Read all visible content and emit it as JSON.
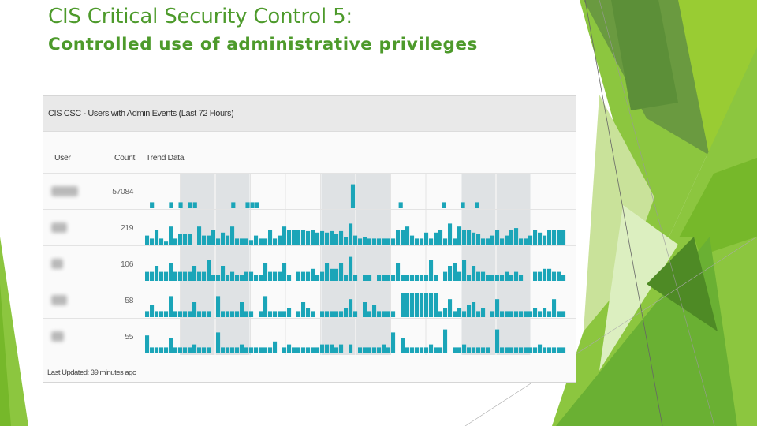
{
  "slide": {
    "title": "CIS Critical Security Control 5:",
    "subtitle": "Controlled use of administrative privileges"
  },
  "panel": {
    "title": "CIS CSC - Users with Admin Events (Last 72 Hours)",
    "columns": {
      "user": "User",
      "count": "Count",
      "trend": "Trend Data"
    },
    "footer": "Last Updated: 39 minutes ago",
    "shaded_buckets": [
      1,
      2,
      5,
      6,
      9,
      10
    ],
    "bar_color": "#1ba5b8",
    "shade_color": "#dfe2e4",
    "rows": [
      {
        "count": "57084",
        "trend": [
          0,
          0.2,
          0,
          0,
          0,
          0.2,
          0,
          0.2,
          0,
          0.2,
          0.2,
          0,
          0,
          0,
          0,
          0,
          0,
          0,
          0.2,
          0,
          0,
          0.2,
          0.2,
          0.2,
          0,
          0,
          0,
          0,
          0,
          0,
          0,
          0,
          0,
          0,
          0,
          0,
          0,
          0,
          0,
          0,
          0,
          0,
          0,
          0.8,
          0,
          0,
          0,
          0,
          0,
          0,
          0,
          0,
          0,
          0.2,
          0,
          0,
          0,
          0,
          0,
          0,
          0,
          0,
          0.2,
          0,
          0,
          0,
          0.2,
          0,
          0,
          0.2,
          0,
          0,
          0,
          0,
          0,
          0,
          0,
          0,
          0,
          0,
          0,
          0,
          0,
          0,
          0,
          0,
          0,
          0
        ]
      },
      {
        "count": "219",
        "trend": [
          0.3,
          0.2,
          0.5,
          0.2,
          0.1,
          0.6,
          0.2,
          0.35,
          0.35,
          0.35,
          0,
          0.6,
          0.3,
          0.3,
          0.5,
          0.2,
          0.4,
          0.3,
          0.6,
          0.2,
          0.2,
          0.2,
          0.15,
          0.3,
          0.2,
          0.2,
          0.5,
          0.2,
          0.3,
          0.6,
          0.5,
          0.5,
          0.5,
          0.5,
          0.45,
          0.5,
          0.4,
          0.45,
          0.4,
          0.45,
          0.35,
          0.45,
          0.25,
          0.7,
          0.3,
          0.2,
          0.25,
          0.2,
          0.2,
          0.2,
          0.2,
          0.2,
          0.2,
          0.5,
          0.5,
          0.6,
          0.3,
          0.2,
          0.2,
          0.4,
          0.2,
          0.4,
          0.5,
          0.2,
          0.7,
          0.2,
          0.6,
          0.5,
          0.5,
          0.4,
          0.35,
          0.2,
          0.2,
          0.3,
          0.5,
          0.2,
          0.3,
          0.5,
          0.55,
          0.2,
          0.2,
          0.3,
          0.5,
          0.4,
          0.3,
          0.5,
          0.5,
          0.5,
          0.5
        ]
      },
      {
        "count": "106",
        "trend": [
          0.3,
          0.3,
          0.5,
          0.3,
          0.3,
          0.6,
          0.3,
          0.3,
          0.3,
          0.3,
          0.5,
          0.3,
          0.3,
          0.7,
          0.2,
          0.2,
          0.5,
          0.2,
          0.3,
          0.2,
          0.2,
          0.3,
          0.3,
          0.2,
          0.2,
          0.6,
          0.3,
          0.3,
          0.3,
          0.6,
          0.2,
          0,
          0.3,
          0.3,
          0.3,
          0.4,
          0.2,
          0.3,
          0.6,
          0.4,
          0.4,
          0.6,
          0.2,
          0.8,
          0.2,
          0,
          0.2,
          0.2,
          0,
          0.2,
          0.2,
          0.2,
          0.2,
          0.6,
          0.2,
          0.2,
          0.2,
          0.2,
          0.2,
          0.2,
          0.7,
          0.2,
          0,
          0.3,
          0.5,
          0.6,
          0.3,
          0.7,
          0.2,
          0.5,
          0.3,
          0.3,
          0.2,
          0.2,
          0.2,
          0.2,
          0.3,
          0.2,
          0.3,
          0.2,
          0,
          0,
          0.3,
          0.3,
          0.4,
          0.4,
          0.3,
          0.3,
          0.2
        ]
      },
      {
        "count": "58",
        "trend": [
          0.2,
          0.4,
          0.2,
          0.2,
          0.2,
          0.7,
          0.2,
          0.2,
          0.2,
          0.2,
          0.5,
          0.2,
          0.2,
          0.2,
          0,
          0.7,
          0.2,
          0.2,
          0.2,
          0.2,
          0.5,
          0.2,
          0.2,
          0,
          0.2,
          0.7,
          0.2,
          0.2,
          0.2,
          0.2,
          0.3,
          0,
          0.2,
          0.5,
          0.3,
          0.2,
          0,
          0.2,
          0.2,
          0.2,
          0.2,
          0.2,
          0.3,
          0.6,
          0.2,
          0,
          0.5,
          0.2,
          0.4,
          0.2,
          0.2,
          0.2,
          0.2,
          0,
          0.8,
          0.8,
          0.8,
          0.8,
          0.8,
          0.8,
          0.8,
          0.8,
          0.2,
          0.3,
          0.6,
          0.2,
          0.3,
          0.2,
          0.4,
          0.5,
          0.2,
          0.3,
          0,
          0.2,
          0.6,
          0.2,
          0.2,
          0.2,
          0.2,
          0.2,
          0.2,
          0.2,
          0.3,
          0.2,
          0.3,
          0.2,
          0.6,
          0.2,
          0.2
        ]
      },
      {
        "count": "55",
        "trend": [
          0.6,
          0.2,
          0.2,
          0.2,
          0.2,
          0.5,
          0.2,
          0.2,
          0.2,
          0.2,
          0.3,
          0.2,
          0.2,
          0.2,
          0,
          0.7,
          0.2,
          0.2,
          0.2,
          0.2,
          0.3,
          0.2,
          0.2,
          0.2,
          0.2,
          0.2,
          0.2,
          0.4,
          0,
          0.2,
          0.3,
          0.2,
          0.2,
          0.2,
          0.2,
          0.2,
          0.2,
          0.3,
          0.3,
          0.3,
          0.2,
          0.3,
          0,
          0.3,
          0,
          0.2,
          0.2,
          0.2,
          0.2,
          0.2,
          0.3,
          0.2,
          0.7,
          0,
          0.5,
          0.2,
          0.2,
          0.2,
          0.2,
          0.2,
          0.3,
          0.2,
          0.2,
          0.8,
          0,
          0.2,
          0.2,
          0.3,
          0.2,
          0.2,
          0.2,
          0.2,
          0.2,
          0,
          0.8,
          0.2,
          0.2,
          0.2,
          0.2,
          0.2,
          0.2,
          0.2,
          0.2,
          0.3,
          0.2,
          0.2,
          0.2,
          0.2,
          0.2
        ]
      }
    ]
  }
}
